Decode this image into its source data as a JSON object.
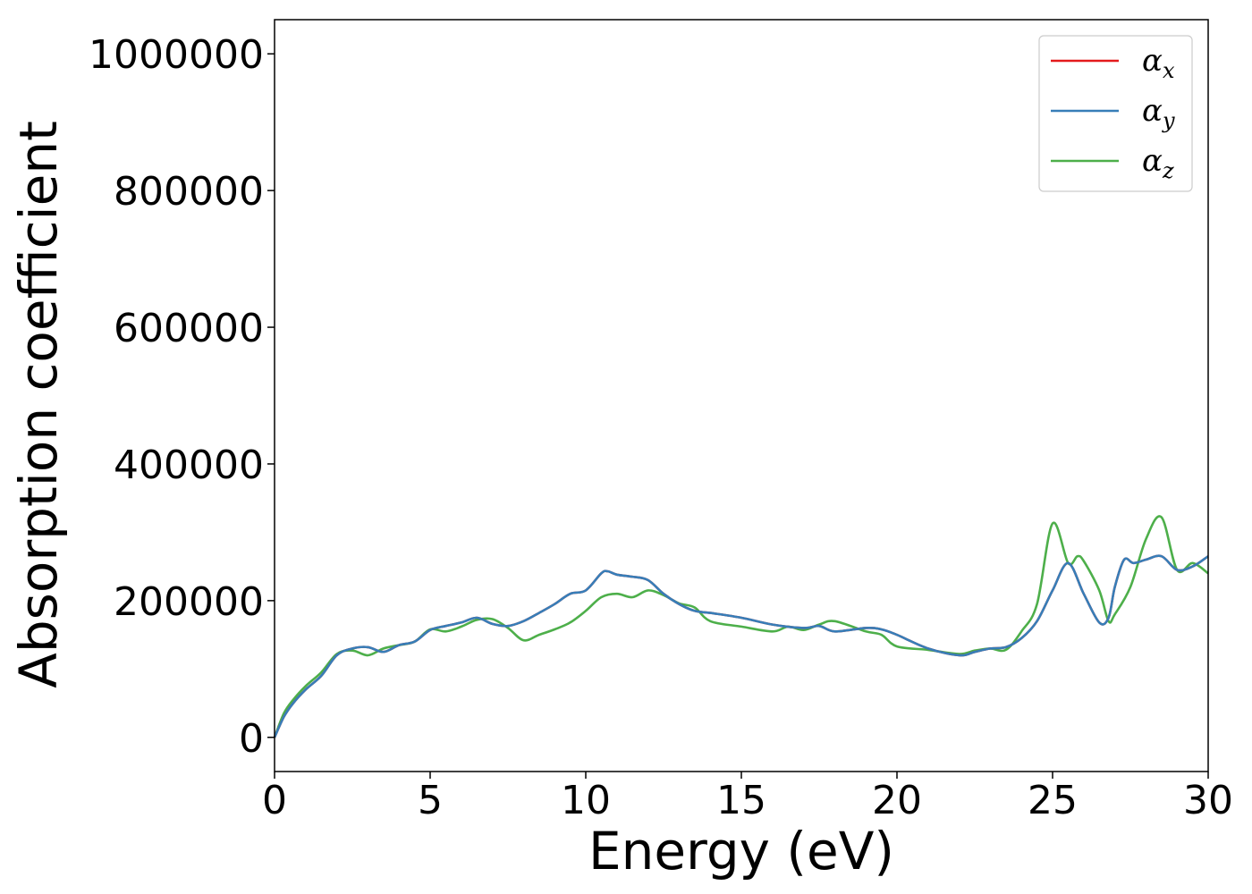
{
  "chart_data": {
    "type": "line",
    "xlabel": "Energy (eV)",
    "ylabel": "Absorption coefficient",
    "xlim": [
      0,
      30
    ],
    "ylim": [
      -50000,
      1050000
    ],
    "xticks": [
      0,
      5,
      10,
      15,
      20,
      25,
      30
    ],
    "xtick_labels": [
      "0",
      "5",
      "10",
      "15",
      "20",
      "25",
      "30"
    ],
    "yticks": [
      0,
      200000,
      400000,
      600000,
      800000,
      1000000
    ],
    "ytick_labels": [
      "0",
      "200000",
      "400000",
      "600000",
      "800000",
      "1000000"
    ],
    "grid": false,
    "legend_position": "top-right",
    "series": [
      {
        "name": "α_x",
        "legend_symbol": "α",
        "legend_subscript": "x",
        "color": "#e41a1c",
        "x": [
          0,
          0.3,
          0.6,
          1.0,
          1.5,
          2.0,
          2.5,
          3.0,
          3.5,
          4.0,
          4.5,
          5.0,
          5.5,
          6.0,
          6.5,
          7.0,
          7.5,
          8.0,
          8.5,
          9.0,
          9.5,
          10.0,
          10.5,
          10.7,
          11.0,
          11.5,
          12.0,
          12.5,
          13.0,
          13.5,
          14.0,
          15.0,
          16.0,
          17.0,
          17.5,
          18.0,
          19.0,
          19.5,
          20.0,
          21.0,
          22.0,
          22.5,
          23.0,
          23.5,
          24.0,
          24.5,
          25.0,
          25.5,
          26.0,
          26.5,
          26.8,
          27.0,
          27.3,
          27.6,
          28.0,
          28.5,
          29.0,
          29.5,
          30.0
        ],
        "y": [
          0,
          30000,
          50000,
          70000,
          90000,
          120000,
          130000,
          132000,
          125000,
          135000,
          140000,
          157000,
          163000,
          168000,
          175000,
          166000,
          163000,
          170000,
          182000,
          195000,
          210000,
          215000,
          240000,
          243000,
          238000,
          235000,
          230000,
          210000,
          195000,
          185000,
          182000,
          175000,
          165000,
          160000,
          163000,
          155000,
          160000,
          158000,
          150000,
          130000,
          120000,
          125000,
          130000,
          132000,
          145000,
          170000,
          215000,
          255000,
          210000,
          168000,
          175000,
          220000,
          260000,
          255000,
          260000,
          265000,
          245000,
          250000,
          265000
        ]
      },
      {
        "name": "α_y",
        "legend_symbol": "α",
        "legend_subscript": "y",
        "color": "#377eb8",
        "x": [
          0,
          0.3,
          0.6,
          1.0,
          1.5,
          2.0,
          2.5,
          3.0,
          3.5,
          4.0,
          4.5,
          5.0,
          5.5,
          6.0,
          6.5,
          7.0,
          7.5,
          8.0,
          8.5,
          9.0,
          9.5,
          10.0,
          10.5,
          10.7,
          11.0,
          11.5,
          12.0,
          12.5,
          13.0,
          13.5,
          14.0,
          15.0,
          16.0,
          17.0,
          17.5,
          18.0,
          19.0,
          19.5,
          20.0,
          21.0,
          22.0,
          22.5,
          23.0,
          23.5,
          24.0,
          24.5,
          25.0,
          25.5,
          26.0,
          26.5,
          26.8,
          27.0,
          27.3,
          27.6,
          28.0,
          28.5,
          29.0,
          29.5,
          30.0
        ],
        "y": [
          0,
          30000,
          50000,
          70000,
          90000,
          120000,
          130000,
          132000,
          125000,
          135000,
          140000,
          157000,
          163000,
          168000,
          175000,
          166000,
          163000,
          170000,
          182000,
          195000,
          210000,
          215000,
          240000,
          243000,
          238000,
          235000,
          230000,
          210000,
          195000,
          185000,
          182000,
          175000,
          165000,
          160000,
          163000,
          155000,
          160000,
          158000,
          150000,
          130000,
          120000,
          125000,
          130000,
          132000,
          145000,
          170000,
          215000,
          255000,
          210000,
          168000,
          175000,
          220000,
          260000,
          255000,
          260000,
          265000,
          245000,
          250000,
          265000
        ]
      },
      {
        "name": "α_z",
        "legend_symbol": "α",
        "legend_subscript": "z",
        "color": "#4daf4a",
        "x": [
          0,
          0.3,
          0.6,
          1.0,
          1.5,
          2.0,
          2.5,
          3.0,
          3.5,
          4.0,
          4.5,
          5.0,
          5.5,
          6.0,
          6.5,
          7.0,
          7.5,
          8.0,
          8.5,
          9.0,
          9.5,
          10.0,
          10.5,
          11.0,
          11.5,
          12.0,
          12.5,
          13.0,
          13.5,
          14.0,
          15.0,
          16.0,
          16.5,
          17.0,
          17.5,
          18.0,
          19.0,
          19.5,
          20.0,
          21.0,
          22.0,
          22.5,
          23.0,
          23.5,
          24.0,
          24.5,
          25.0,
          25.5,
          25.8,
          26.0,
          26.5,
          26.8,
          27.0,
          27.5,
          28.0,
          28.5,
          29.0,
          29.5,
          30.0
        ],
        "y": [
          0,
          35000,
          55000,
          75000,
          95000,
          122000,
          127000,
          120000,
          130000,
          135000,
          140000,
          158000,
          155000,
          162000,
          172000,
          173000,
          160000,
          142000,
          150000,
          158000,
          168000,
          185000,
          205000,
          210000,
          205000,
          215000,
          208000,
          196000,
          190000,
          170000,
          162000,
          155000,
          162000,
          157000,
          165000,
          170000,
          155000,
          150000,
          133000,
          128000,
          122000,
          127000,
          130000,
          128000,
          155000,
          195000,
          313000,
          255000,
          265000,
          258000,
          215000,
          170000,
          180000,
          220000,
          290000,
          322000,
          245000,
          255000,
          240000
        ]
      }
    ]
  }
}
